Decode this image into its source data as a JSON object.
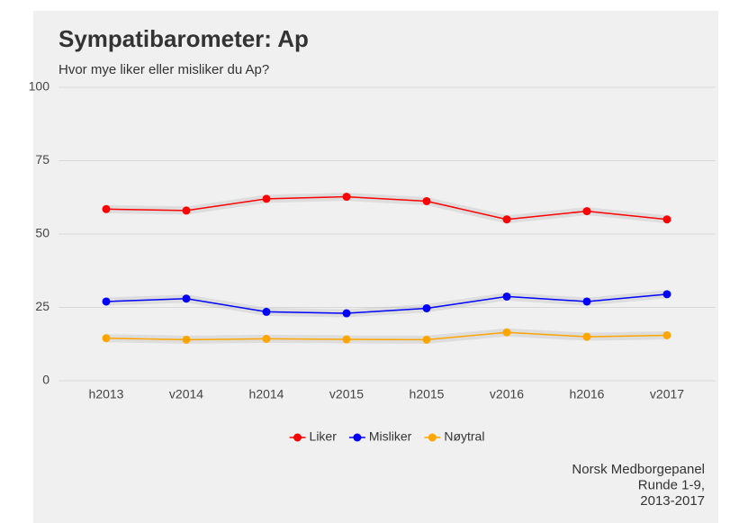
{
  "chart_data": {
    "type": "line",
    "title": "Sympatibarometer: Ap",
    "subtitle": "Hvor mye liker eller misliker du Ap?",
    "caption": [
      "Norsk Medborgepanel",
      "Runde 1-9,",
      "2013-2017"
    ],
    "categories": [
      "h2013",
      "v2014",
      "h2014",
      "v2015",
      "h2015",
      "v2016",
      "h2016",
      "v2017"
    ],
    "series": [
      {
        "name": "Liker",
        "color": "#ff0000",
        "values": [
          58.5,
          58,
          62,
          62.7,
          61.2,
          55,
          57.8,
          55
        ]
      },
      {
        "name": "Misliker",
        "color": "#0000ff",
        "values": [
          27,
          28,
          23.5,
          23,
          24.7,
          28.7,
          27,
          29.5
        ]
      },
      {
        "name": "Nøytral",
        "color": "#ffa500",
        "values": [
          14.5,
          14,
          14.3,
          14.1,
          14,
          16.5,
          15,
          15.5
        ]
      }
    ],
    "ylim": [
      0,
      100
    ],
    "yticks": [
      0,
      25,
      50,
      75,
      100
    ],
    "grid": true,
    "legend": "bottom"
  }
}
